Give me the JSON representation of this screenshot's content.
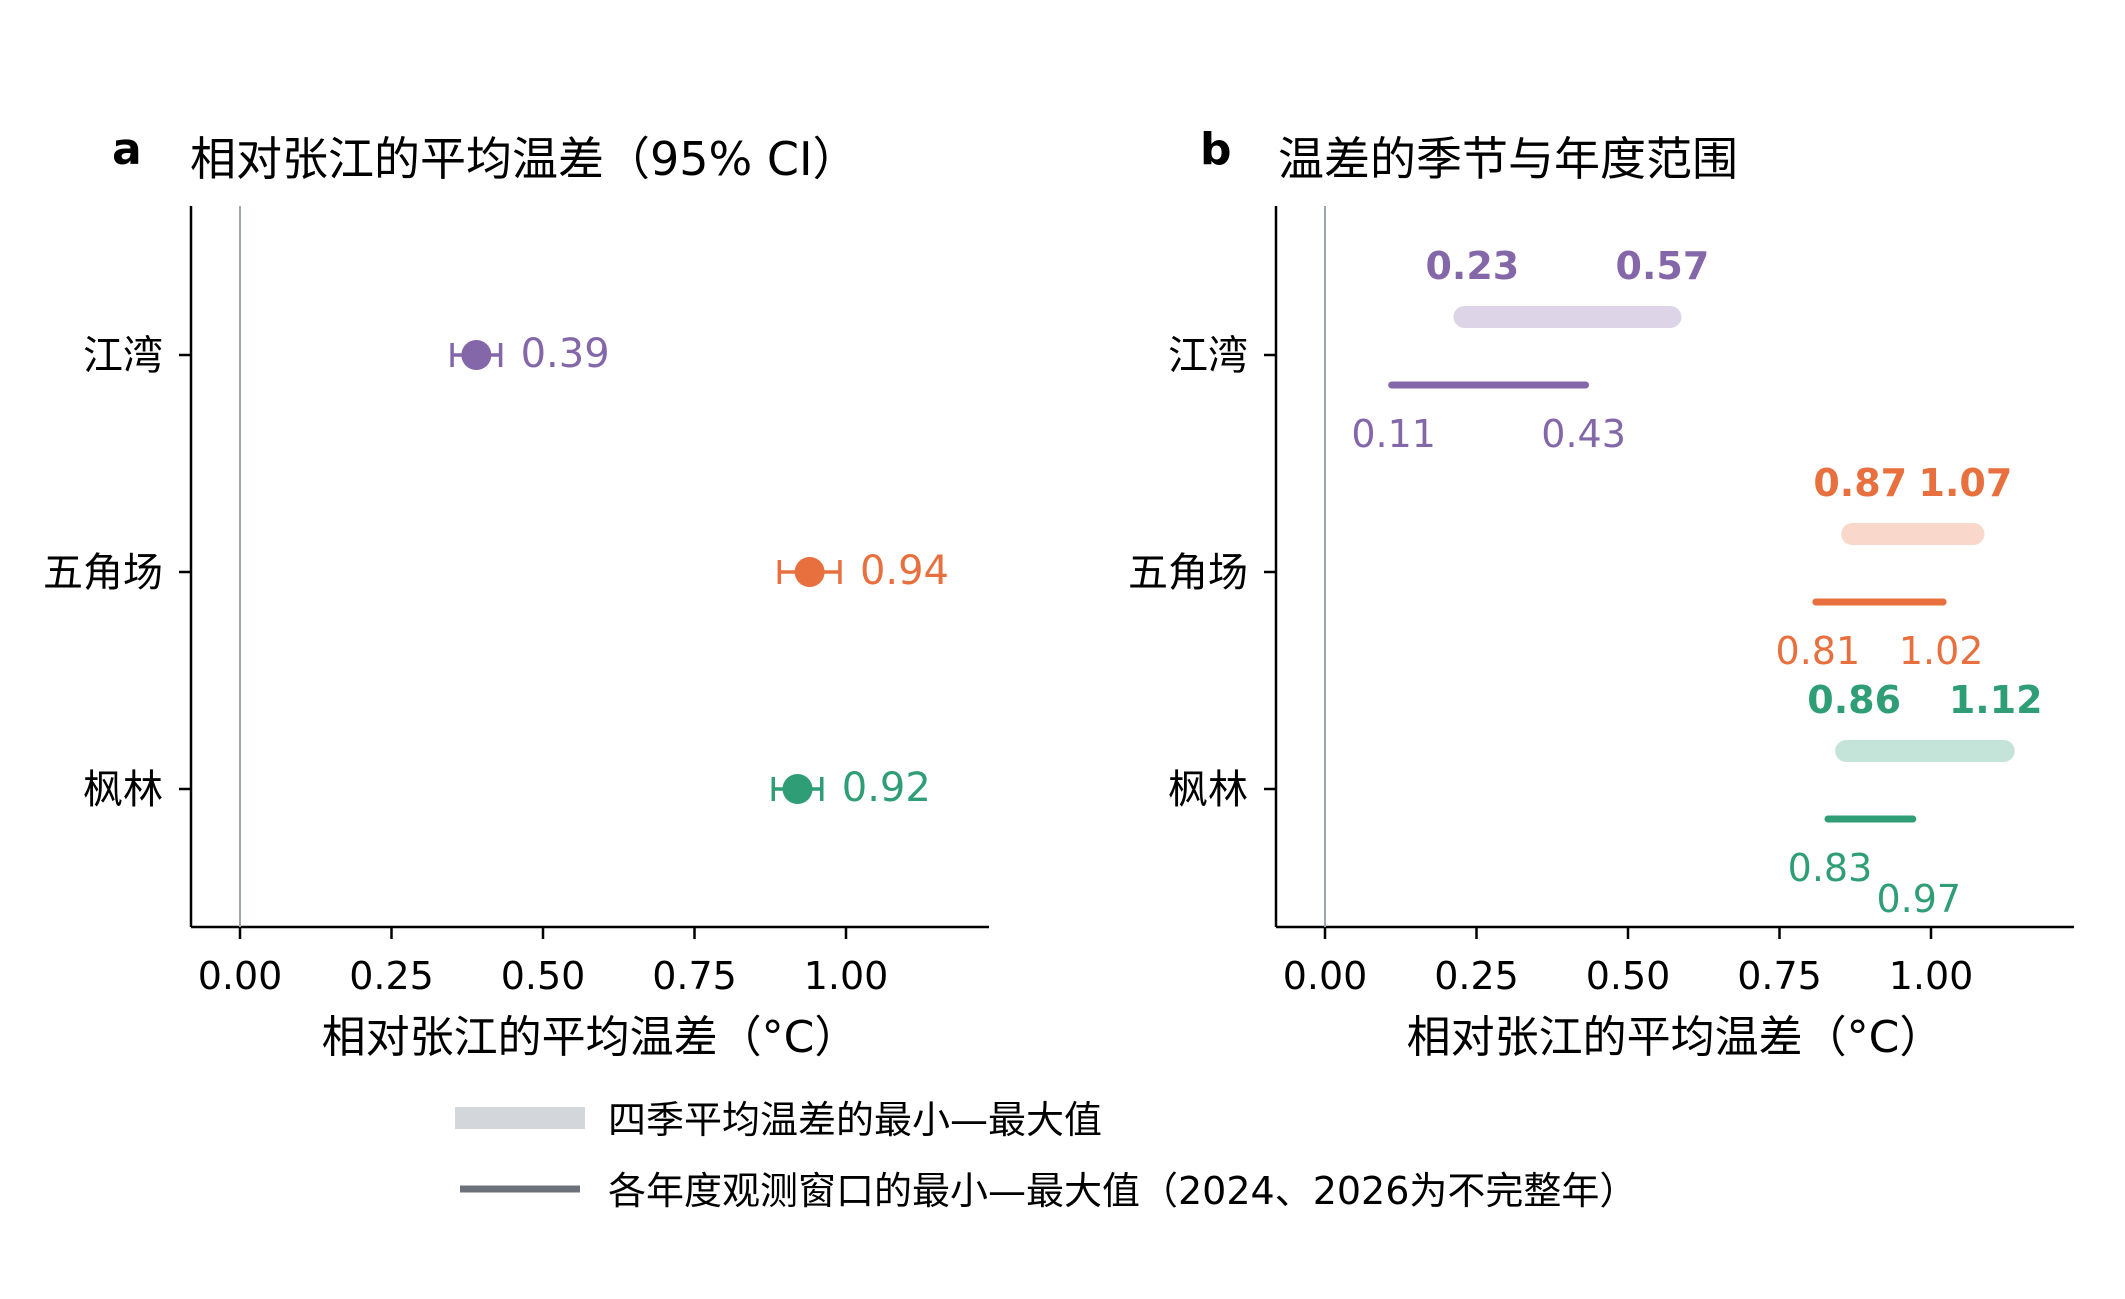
{
  "colors": {
    "purple": "#8467a9",
    "orange": "#e8703f",
    "green": "#2f9e76",
    "ref_line": "#9ea6b0",
    "legend_band": "#d3d6da",
    "legend_line": "#6b7079"
  },
  "chart_data": [
    {
      "panel": "a",
      "type": "scatter",
      "title": "相对张江的平均温差（95% CI）",
      "xlabel": "相对张江的平均温差（°C）",
      "ylabel": "",
      "xlim": [
        -0.08,
        1.23
      ],
      "xticks": [
        "0.00",
        "0.25",
        "0.50",
        "0.75",
        "1.00"
      ],
      "xtick_values": [
        0,
        0.25,
        0.5,
        0.75,
        1.0
      ],
      "categories": [
        "江湾",
        "五角场",
        "枫林"
      ],
      "reference_line_x": 0,
      "points": [
        {
          "site": "江湾",
          "value": 0.39,
          "label": "0.39",
          "ci_low": 0.35,
          "ci_high": 0.43,
          "color": "#8467a9"
        },
        {
          "site": "五角场",
          "value": 0.94,
          "label": "0.94",
          "ci_low": 0.89,
          "ci_high": 0.99,
          "color": "#e8703f"
        },
        {
          "site": "枫林",
          "value": 0.92,
          "label": "0.92",
          "ci_low": 0.88,
          "ci_high": 0.96,
          "color": "#2f9e76"
        }
      ]
    },
    {
      "panel": "b",
      "type": "range",
      "title": "温差的季节与年度范围",
      "xlabel": "相对张江的平均温差（°C）",
      "ylabel": "",
      "xlim": [
        -0.08,
        1.23
      ],
      "xticks": [
        "0.00",
        "0.25",
        "0.50",
        "0.75",
        "1.00"
      ],
      "xtick_values": [
        0,
        0.25,
        0.5,
        0.75,
        1.0
      ],
      "categories": [
        "江湾",
        "五角场",
        "枫林"
      ],
      "reference_line_x": 0,
      "ranges": [
        {
          "site": "江湾",
          "color": "#8467a9",
          "seasonal": {
            "min": 0.23,
            "max": 0.57,
            "min_label": "0.23",
            "max_label": "0.57"
          },
          "annual": {
            "min": 0.11,
            "max": 0.43,
            "min_label": "0.11",
            "max_label": "0.43"
          }
        },
        {
          "site": "五角场",
          "color": "#e8703f",
          "seasonal": {
            "min": 0.87,
            "max": 1.07,
            "min_label": "0.87",
            "max_label": "1.07"
          },
          "annual": {
            "min": 0.81,
            "max": 1.02,
            "min_label": "0.81",
            "max_label": "1.02"
          }
        },
        {
          "site": "枫林",
          "color": "#2f9e76",
          "seasonal": {
            "min": 0.86,
            "max": 1.12,
            "min_label": "0.86",
            "max_label": "1.12"
          },
          "annual": {
            "min": 0.83,
            "max": 0.97,
            "min_label": "0.83",
            "max_label": "0.97"
          }
        }
      ]
    }
  ],
  "legend": {
    "placement": "bottom-center",
    "seasonal_label": "四季平均温差的最小—最大值",
    "annual_label": "各年度观测窗口的最小—最大值（2024、2026为不完整年）"
  }
}
